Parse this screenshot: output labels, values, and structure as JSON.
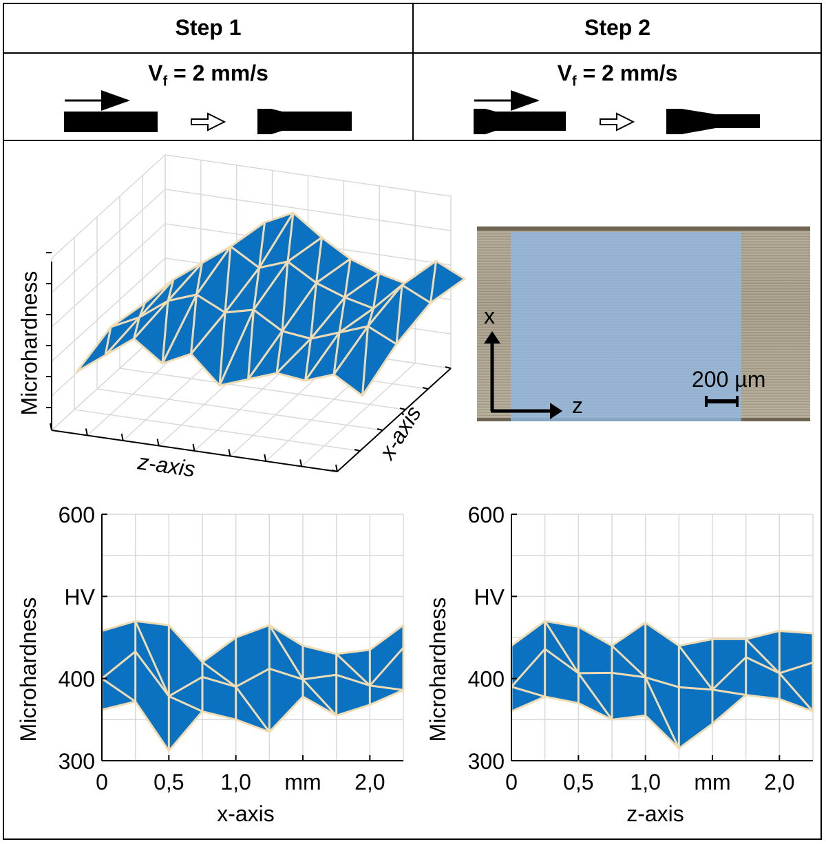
{
  "header": {
    "step1": {
      "label": "Step 1",
      "speed_main": "V",
      "speed_sub": "f",
      "speed_rest": " = 2 mm/s"
    },
    "step2": {
      "label": "Step 2",
      "speed_main": "V",
      "speed_sub": "f",
      "speed_rest": " = 2 mm/s"
    }
  },
  "colors": {
    "surface": "#0a72c0",
    "mesh": "#f0dcb4",
    "grid": "#d9d9d9",
    "overlay": "#8fb8e4",
    "micro_bg": "#b3ab97"
  },
  "surface3d": {
    "zlabel": "Microhardness",
    "xlabel": "z-axis",
    "ylabel": "x-axis"
  },
  "micrograph": {
    "x_label": "x",
    "z_label": "z",
    "scale_label": "200 µm"
  },
  "chart_data": [
    {
      "type": "area",
      "title": "",
      "xlabel": "x-axis",
      "ylabel": "Microhardness",
      "xunit": "mm",
      "yunit": "HV",
      "xlim": [
        0,
        2.25
      ],
      "ylim": [
        300,
        600
      ],
      "xticks": [
        "0",
        "0,5",
        "1,0",
        "mm",
        "2,0"
      ],
      "yticks": [
        "300",
        "400",
        "HV",
        "600"
      ],
      "x": [
        0,
        0.25,
        0.5,
        0.75,
        1.0,
        1.25,
        1.5,
        1.75,
        2.0,
        2.25
      ],
      "upper": [
        458,
        470,
        465,
        420,
        450,
        465,
        440,
        430,
        435,
        465
      ],
      "lower": [
        362,
        372,
        312,
        360,
        350,
        335,
        378,
        355,
        368,
        386
      ]
    },
    {
      "type": "area",
      "title": "",
      "xlabel": "z-axis",
      "ylabel": "Microhardness",
      "xunit": "mm",
      "yunit": "HV",
      "xlim": [
        0,
        2.25
      ],
      "ylim": [
        300,
        600
      ],
      "xticks": [
        "0",
        "0,5",
        "1,0",
        "mm",
        "2,0"
      ],
      "yticks": [
        "300",
        "400",
        "HV",
        "600"
      ],
      "x": [
        0,
        0.25,
        0.5,
        0.75,
        1.0,
        1.25,
        1.5,
        1.75,
        2.0,
        2.25
      ],
      "upper": [
        440,
        470,
        463,
        440,
        468,
        440,
        448,
        448,
        458,
        455
      ],
      "lower": [
        360,
        378,
        370,
        350,
        355,
        315,
        345,
        380,
        375,
        360
      ]
    }
  ]
}
